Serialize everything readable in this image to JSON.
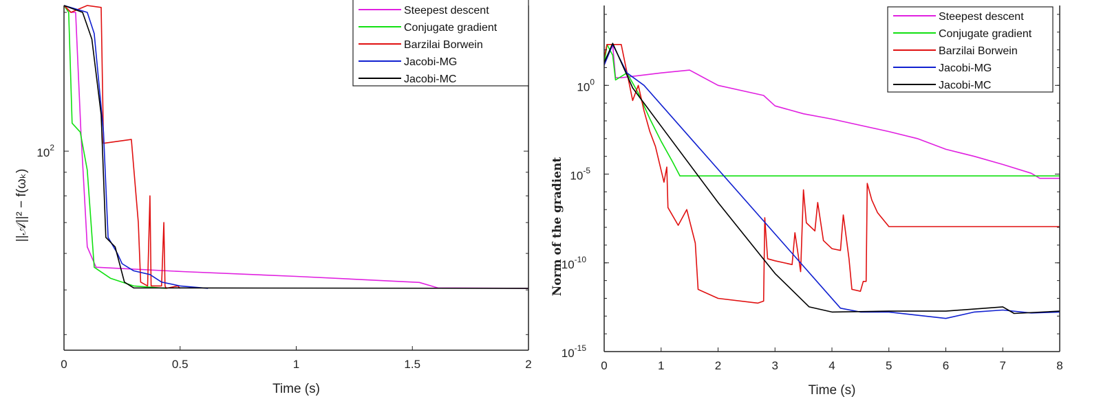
{
  "chart_data": [
    {
      "type": "line",
      "title": "",
      "xlabel": "Time (s)",
      "ylabel": "||𝒜||² − f(ωₖ)",
      "xlim": [
        0,
        2
      ],
      "ylim": [
        37,
        207
      ],
      "yscale": "log",
      "xticks": [
        "0",
        "0.5",
        "1",
        "1.5",
        "2"
      ],
      "yticks": [
        {
          "label_base": "10",
          "label_exp": "2",
          "value": 100
        }
      ],
      "y_minor_ticks": [
        40,
        50,
        60,
        70,
        80,
        90,
        200
      ],
      "grid": false,
      "legend_position": "top-right",
      "series": [
        {
          "name": "Steepest descent",
          "color": "#e020e0",
          "x": [
            0,
            0.03,
            0.05,
            0.073,
            0.1,
            0.138,
            0.51,
            1.0,
            1.53,
            1.61,
            2.0
          ],
          "y": [
            207,
            200,
            200,
            110,
            62,
            56,
            54.8,
            53.5,
            51.9,
            50.5,
            50.4
          ]
        },
        {
          "name": "Conjugate gradient",
          "color": "#10e010",
          "x": [
            0,
            0.02,
            0.035,
            0.07,
            0.1,
            0.13,
            0.2,
            0.3,
            0.44
          ],
          "y": [
            207,
            200,
            115,
            110,
            91,
            56,
            53,
            51,
            50.4
          ]
        },
        {
          "name": "Barzilai Borwein",
          "color": "#e01010",
          "x": [
            0,
            0.03,
            0.1,
            0.16,
            0.17,
            0.29,
            0.32,
            0.33,
            0.36,
            0.37,
            0.375,
            0.38,
            0.42,
            0.43,
            0.435,
            0.44,
            0.49,
            0.5
          ],
          "y": [
            207,
            200,
            207,
            205,
            104,
            106,
            70,
            52,
            51,
            80,
            51,
            51,
            51,
            70,
            51,
            50.4,
            51,
            50.4
          ]
        },
        {
          "name": "Jacobi-MG",
          "color": "#1020d0",
          "x": [
            0,
            0.1,
            0.13,
            0.17,
            0.19,
            0.23,
            0.25,
            0.3,
            0.37,
            0.42,
            0.5,
            0.62
          ],
          "y": [
            207,
            200,
            180,
            110,
            65,
            60,
            57,
            55,
            54,
            52,
            51,
            50.4
          ]
        },
        {
          "name": "Jacobi-MC",
          "color": "#000000",
          "x": [
            0,
            0.08,
            0.12,
            0.16,
            0.18,
            0.22,
            0.26,
            0.3,
            2.0
          ],
          "y": [
            207,
            200,
            175,
            120,
            65,
            62,
            52,
            50.5,
            50.4
          ]
        }
      ]
    },
    {
      "type": "line",
      "title": "",
      "xlabel": "Time (s)",
      "ylabel": "Norm of the gradient",
      "xlim": [
        0,
        8
      ],
      "ylim": [
        1e-15,
        31622
      ],
      "yscale": "log",
      "xticks": [
        "0",
        "1",
        "2",
        "3",
        "4",
        "5",
        "6",
        "7",
        "8"
      ],
      "yticks": [
        {
          "label_base": "10",
          "label_exp": "0",
          "value": 1
        },
        {
          "label_base": "10",
          "label_exp": "-5",
          "value": 1e-05
        },
        {
          "label_base": "10",
          "label_exp": "-10",
          "value": 1e-10
        },
        {
          "label_base": "10",
          "label_exp": "-15",
          "value": 1e-15
        }
      ],
      "grid": false,
      "legend_position": "top-right",
      "series": [
        {
          "name": "Steepest descent",
          "color": "#e020e0",
          "x": [
            0,
            0.15,
            0.2,
            0.3,
            1,
            1.5,
            2,
            2.8,
            3,
            3.5,
            4,
            5,
            5.5,
            6,
            6.5,
            7,
            7.5,
            7.65,
            8
          ],
          "y": [
            14,
            200,
            2.7,
            2.7,
            5,
            7.2,
            1,
            0.27,
            0.07,
            0.025,
            0.0126,
            0.0025,
            0.001,
            0.00025,
            0.0001,
            3.5e-05,
            1.12e-05,
            5.8e-06,
            5.8e-06
          ]
        },
        {
          "name": "Conjugate gradient",
          "color": "#10e010",
          "x": [
            0,
            0.05,
            0.15,
            0.2,
            0.4,
            0.6,
            0.8,
            1,
            1.2,
            1.33,
            8
          ],
          "y": [
            14,
            200,
            50,
            2,
            5,
            0.37,
            0.0135,
            0.0007,
            5e-05,
            7.9e-06,
            7.9e-06
          ]
        },
        {
          "name": "Barzilai Borwein",
          "color": "#e01010",
          "x": [
            0,
            0.05,
            0.3,
            0.5,
            0.6,
            0.7,
            0.8,
            0.9,
            1.05,
            1.1,
            1.12,
            1.3,
            1.45,
            1.6,
            1.65,
            2,
            2.7,
            2.8,
            2.82,
            2.87,
            3,
            3.3,
            3.35,
            3.45,
            3.5,
            3.55,
            3.7,
            3.75,
            3.85,
            4,
            4.15,
            4.2,
            4.3,
            4.35,
            4.5,
            4.55,
            4.6,
            4.62,
            4.7,
            4.8,
            5,
            8
          ],
          "y": [
            38,
            200,
            200,
            0.14,
            1,
            0.037,
            0.0026,
            0.00036,
            3.5e-06,
            2.5e-05,
            1.3e-07,
            1.3e-08,
            1e-07,
            1.3e-09,
            3.2e-12,
            1e-12,
            5.4e-13,
            7e-13,
            3.5e-08,
            1.7e-10,
            1.3e-10,
            8e-11,
            5e-09,
            3.2e-11,
            1.3e-06,
            1.8e-08,
            6.3e-09,
            2.5e-07,
            1.8e-09,
            6.3e-10,
            5e-10,
            5e-08,
            1.7e-10,
            3.2e-12,
            2.5e-12,
            9e-12,
            9e-12,
            3e-06,
            3.5e-07,
            6.8e-08,
            1.1e-08,
            1.1e-08
          ]
        },
        {
          "name": "Jacobi-MG",
          "color": "#1020d0",
          "x": [
            0,
            0.15,
            0.4,
            0.7,
            4.15,
            4.5,
            5,
            6,
            6.5,
            7,
            7.5,
            8
          ],
          "y": [
            14,
            200,
            5,
            1,
            2.8e-13,
            1.7e-13,
            1.7e-13,
            7.4e-14,
            1.7e-13,
            2.2e-13,
            1.5e-13,
            1.7e-13
          ]
        },
        {
          "name": "Jacobi-MC",
          "color": "#000000",
          "x": [
            0,
            0.15,
            0.5,
            1,
            2,
            3,
            3.6,
            4,
            5,
            6,
            7,
            7.2,
            8
          ],
          "y": [
            19,
            234,
            0.72,
            0.005,
            2.5e-07,
            2.5e-11,
            3.3e-13,
            1.7e-13,
            1.9e-13,
            1.9e-13,
            3.3e-13,
            1.4e-13,
            1.9e-13
          ]
        }
      ]
    }
  ]
}
